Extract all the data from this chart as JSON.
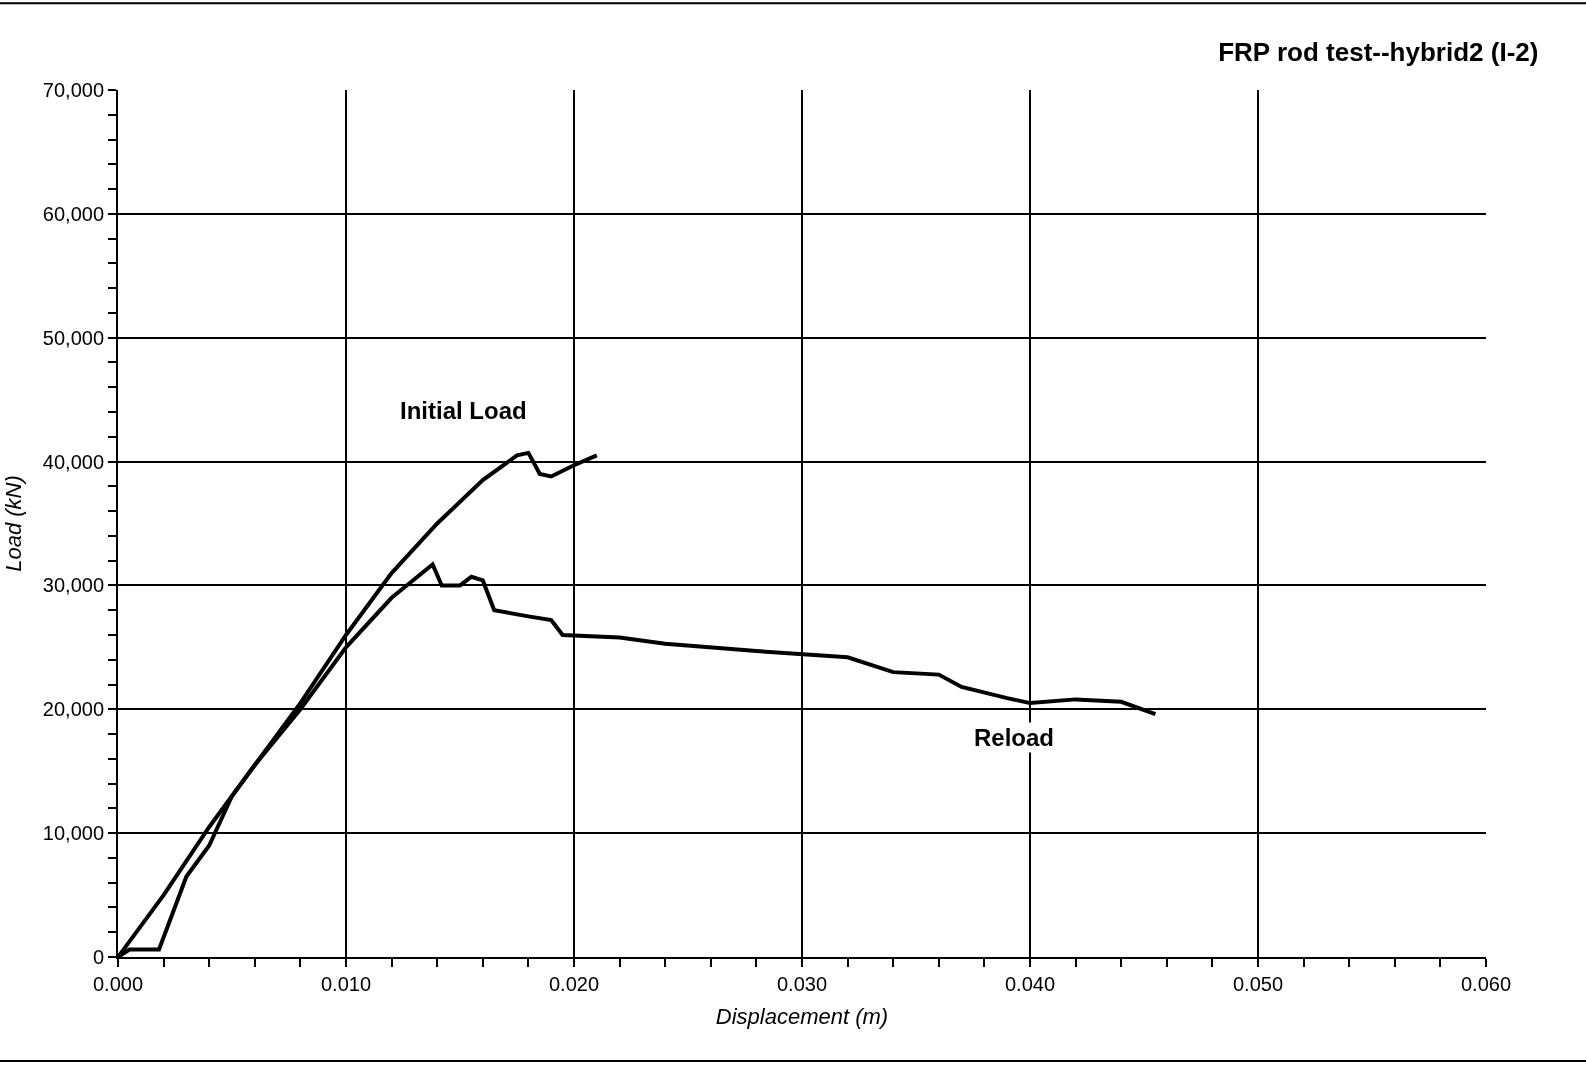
{
  "chart_data": {
    "type": "line",
    "title": "FRP rod test--hybrid2 (I-2)",
    "xlabel": "Displacement (m)",
    "ylabel": "Load (kN)",
    "series": [
      {
        "color": "#000000",
        "x": [
          0,
          0.002,
          0.004,
          0.006,
          0.008,
          0.01,
          0.012,
          0.014,
          0.016,
          0.0175,
          0.018,
          0.0185,
          0.019,
          0.02,
          0.021
        ],
        "values": [
          0,
          5000,
          10500,
          15500,
          20500,
          26000,
          31000,
          35000,
          38500,
          40500,
          40700,
          39000,
          38800,
          39700,
          40500
        ]
      },
      {
        "color": "#000000",
        "x": [
          0,
          0.0005,
          0.0018,
          0.003,
          0.004,
          0.005,
          0.006,
          0.008,
          0.01,
          0.012,
          0.013,
          0.0138,
          0.0142,
          0.015,
          0.0155,
          0.016,
          0.0165,
          0.018,
          0.019,
          0.0195,
          0.022,
          0.024,
          0.028,
          0.032,
          0.034,
          0.036,
          0.037,
          0.039,
          0.04,
          0.042,
          0.044,
          0.0455
        ],
        "values": [
          0,
          600,
          600,
          6500,
          9000,
          13000,
          15500,
          20000,
          25000,
          29000,
          30500,
          31700,
          30000,
          30000,
          30700,
          30400,
          28000,
          27500,
          27200,
          26000,
          25800,
          25300,
          24700,
          24200,
          23000,
          22800,
          21800,
          20900,
          20500,
          20800,
          20600,
          19600
        ]
      }
    ],
    "annotations": [
      "Initial Load",
      "Reload"
    ],
    "xlim": [
      0,
      0.06
    ],
    "xticks": [
      {
        "value": 0,
        "label": "0.000"
      },
      {
        "value": 0.01,
        "label": "0.010"
      },
      {
        "value": 0.02,
        "label": "0.020"
      },
      {
        "value": 0.03,
        "label": "0.030"
      },
      {
        "value": 0.04,
        "label": "0.040"
      },
      {
        "value": 0.05,
        "label": "0.050"
      },
      {
        "value": 0.06,
        "label": "0.060"
      }
    ],
    "ylim": [
      0,
      70000
    ],
    "yticks": [
      0,
      {
        "value": 10000,
        "label": "10,000"
      },
      {
        "value": 20000,
        "label": "20,000"
      },
      {
        "value": 30000,
        "label": "30,000"
      },
      {
        "value": 40000,
        "label": "40,000"
      },
      {
        "value": 50000,
        "label": "50,000"
      },
      {
        "value": 60000,
        "label": "60,000"
      },
      {
        "value": 70000,
        "label": "70,000"
      }
    ],
    "grid": true,
    "marker": "none",
    "line_style": "solid"
  }
}
